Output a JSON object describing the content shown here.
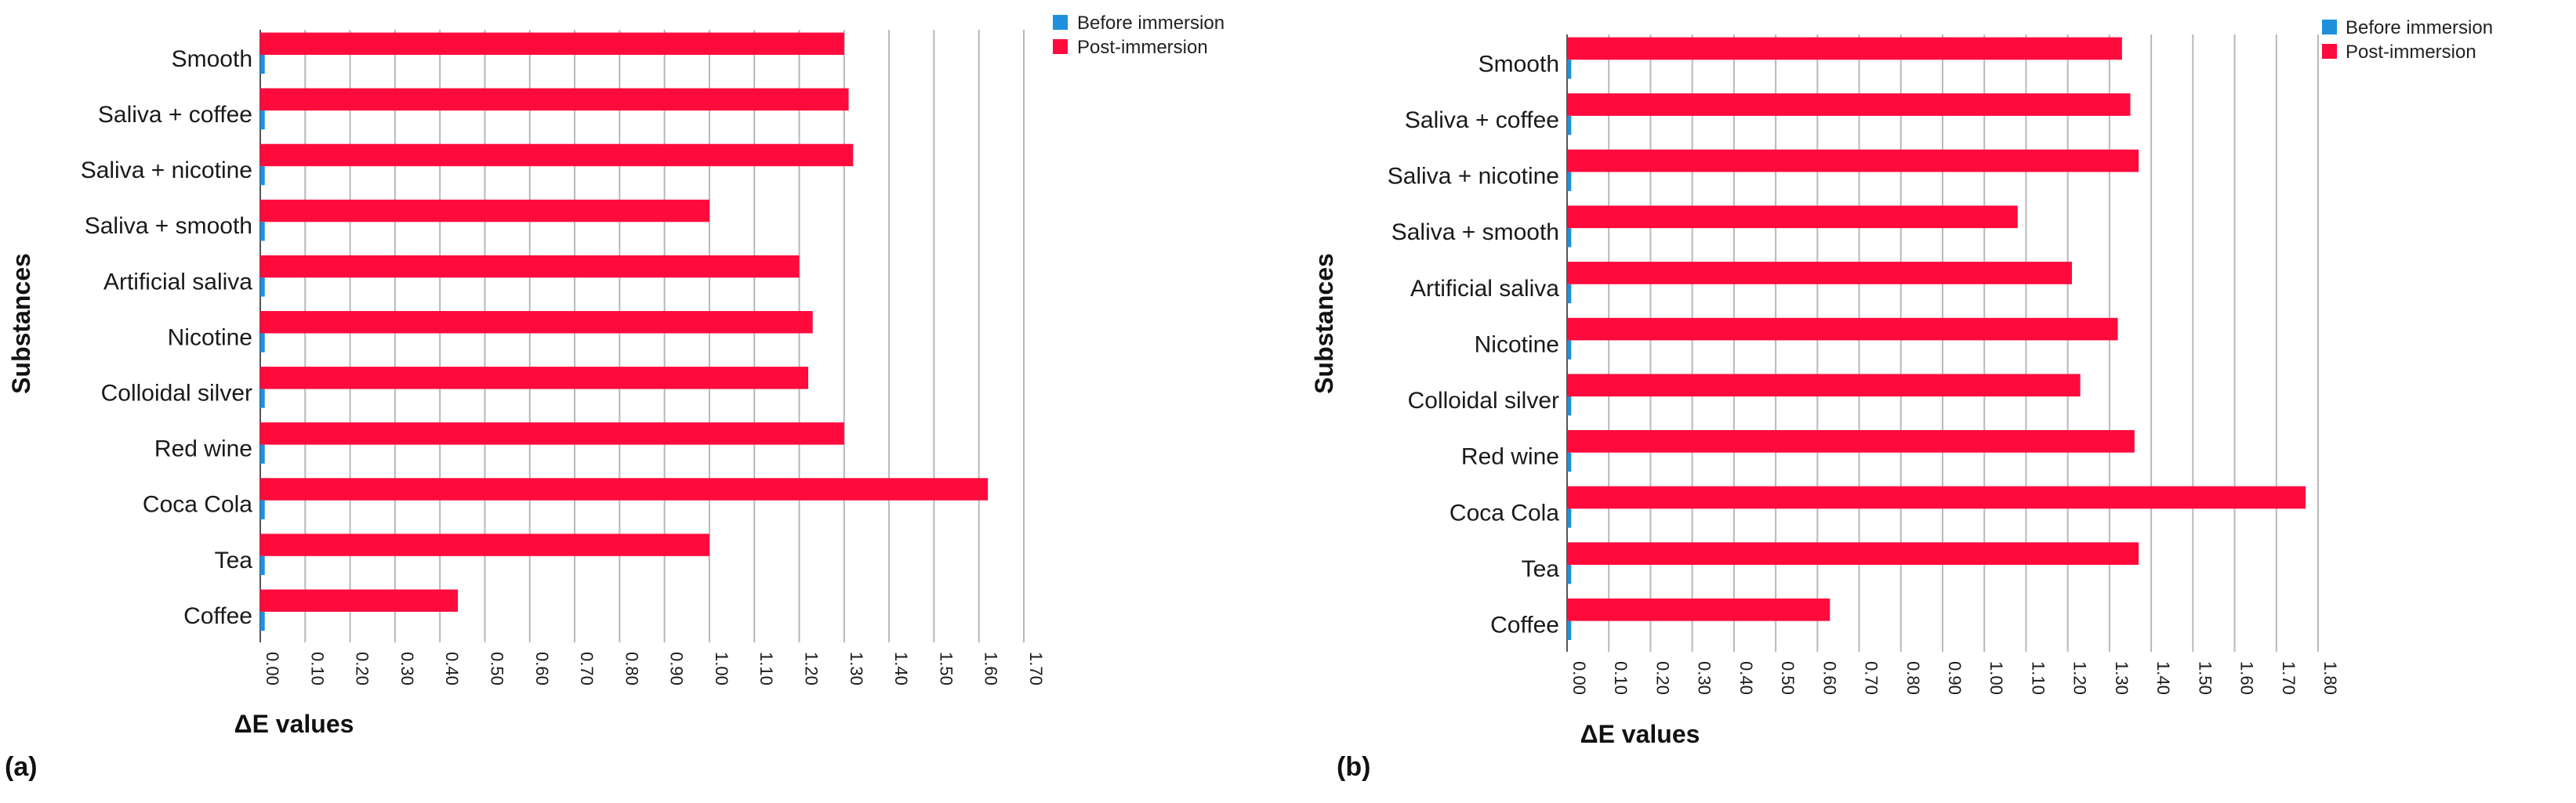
{
  "colors": {
    "before": "#1e90dc",
    "post": "#ff0a3c"
  },
  "chart_data": [
    {
      "type": "bar",
      "orientation": "horizontal",
      "panel_label": "(a)",
      "xlabel": "ΔE values",
      "ylabel": "Substances",
      "xlim": [
        0,
        1.7
      ],
      "x_ticks": [
        "0.00",
        "0.10",
        "0.20",
        "0.30",
        "0.40",
        "0.50",
        "0.60",
        "0.70",
        "0.80",
        "0.90",
        "1.00",
        "1.10",
        "1.20",
        "1.30",
        "1.40",
        "1.50",
        "1.60",
        "1.70"
      ],
      "categories": [
        "Smooth",
        "Saliva + coffee",
        "Saliva + nicotine",
        "Saliva + smooth",
        "Artificial saliva",
        "Nicotine",
        "Colloidal silver",
        "Red wine",
        "Coca Cola",
        "Tea",
        "Coffee"
      ],
      "legend": [
        "Before immersion",
        "Post-immersion"
      ],
      "series": [
        {
          "name": "Before immersion",
          "values": [
            0.01,
            0.01,
            0.01,
            0.01,
            0.01,
            0.01,
            0.01,
            0.01,
            0.01,
            0.01,
            0.01
          ]
        },
        {
          "name": "Post-immersion",
          "values": [
            1.3,
            1.31,
            1.32,
            1.0,
            1.2,
            1.23,
            1.22,
            1.3,
            1.62,
            1.0,
            0.44
          ]
        }
      ]
    },
    {
      "type": "bar",
      "orientation": "horizontal",
      "panel_label": "(b)",
      "xlabel": "ΔE values",
      "ylabel": "Substances",
      "xlim": [
        0,
        1.8
      ],
      "x_ticks": [
        "0.00",
        "0.10",
        "0.20",
        "0.30",
        "0.40",
        "0.50",
        "0.60",
        "0.70",
        "0.80",
        "0.90",
        "1.00",
        "1.10",
        "1.20",
        "1.30",
        "1.40",
        "1.50",
        "1.60",
        "1.70",
        "1.80"
      ],
      "categories": [
        "Smooth",
        "Saliva + coffee",
        "Saliva + nicotine",
        "Saliva + smooth",
        "Artificial saliva",
        "Nicotine",
        "Colloidal silver",
        "Red wine",
        "Coca Cola",
        "Tea",
        "Coffee"
      ],
      "legend": [
        "Before immersion",
        "Post-immersion"
      ],
      "series": [
        {
          "name": "Before immersion",
          "values": [
            0.01,
            0.01,
            0.01,
            0.01,
            0.01,
            0.01,
            0.01,
            0.01,
            0.01,
            0.01,
            0.01
          ]
        },
        {
          "name": "Post-immersion",
          "values": [
            1.33,
            1.35,
            1.37,
            1.08,
            1.21,
            1.32,
            1.23,
            1.36,
            1.77,
            1.37,
            0.63
          ]
        }
      ]
    }
  ]
}
